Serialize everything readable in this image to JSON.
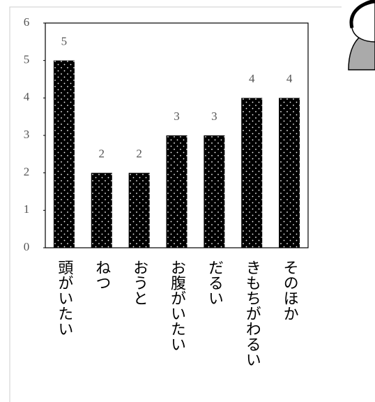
{
  "chart_data": {
    "type": "bar",
    "categories": [
      "頭がいたい",
      "ねつ",
      "おうと",
      "お腹がいたい",
      "だるい",
      "きもちがわるい",
      "そのほか"
    ],
    "values": [
      5,
      2,
      2,
      3,
      3,
      4,
      4
    ],
    "color": "#000000",
    "ylim": [
      0,
      6
    ],
    "yticks": [
      0,
      1,
      2,
      3,
      4,
      5,
      6
    ],
    "grid": false
  }
}
